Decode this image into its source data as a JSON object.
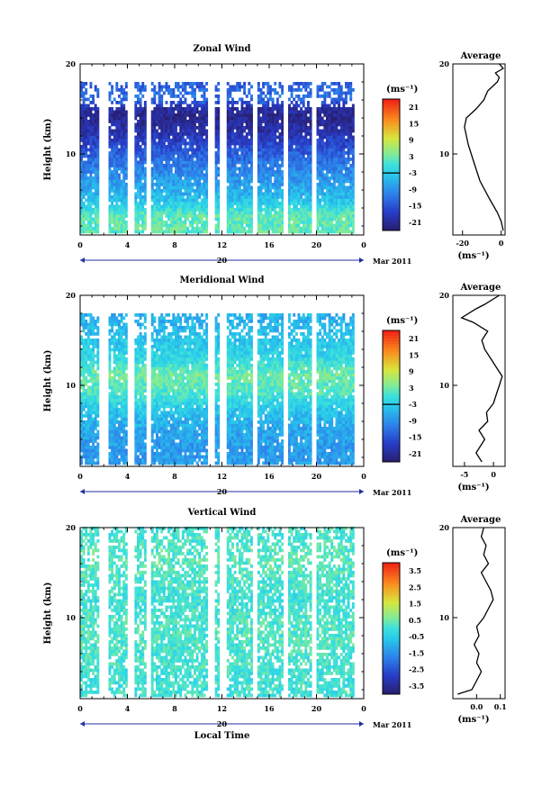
{
  "chart_data": [
    {
      "type": "heatmap",
      "title": "Zonal Wind",
      "xlabel": "",
      "ylabel": "Height (km)",
      "xlim": [
        0,
        24
      ],
      "ylim": [
        1,
        20
      ],
      "x_ticks": [
        "0",
        "4",
        "8",
        "12",
        "16",
        "20",
        "0"
      ],
      "y_ticks": [
        "20",
        "10"
      ],
      "date_label": "20",
      "month_label": "Mar 2011",
      "colorbar": {
        "unit": "(ms⁻¹)",
        "ticks": [
          "21",
          "15",
          "9",
          "3",
          "-3",
          "-9",
          "-15",
          "-21"
        ],
        "range": [
          -24,
          24
        ]
      },
      "value_by_height": [
        {
          "h": 3,
          "v": 2
        },
        {
          "h": 5,
          "v": -5
        },
        {
          "h": 8,
          "v": -10
        },
        {
          "h": 10,
          "v": -14
        },
        {
          "h": 12,
          "v": -19
        },
        {
          "h": 14,
          "v": -22
        },
        {
          "h": 15,
          "v": -20
        },
        {
          "h": 16,
          "v": -12
        },
        {
          "h": 17.5,
          "v": -14
        }
      ],
      "average": {
        "title": "Average",
        "xlabel": "(ms⁻¹)",
        "x_ticks": [
          "-20",
          "0"
        ],
        "y_ticks": [
          "20",
          "10"
        ],
        "xlim": [
          -25,
          2
        ],
        "ylim": [
          1,
          20
        ],
        "profile": [
          {
            "h": 1.5,
            "v": 1
          },
          {
            "h": 2.5,
            "v": 0
          },
          {
            "h": 3.5,
            "v": -2
          },
          {
            "h": 5,
            "v": -6
          },
          {
            "h": 7,
            "v": -11
          },
          {
            "h": 9,
            "v": -14
          },
          {
            "h": 11,
            "v": -17
          },
          {
            "h": 13,
            "v": -19
          },
          {
            "h": 14,
            "v": -18
          },
          {
            "h": 15,
            "v": -13
          },
          {
            "h": 16,
            "v": -9
          },
          {
            "h": 17,
            "v": -7
          },
          {
            "h": 18,
            "v": -2
          },
          {
            "h": 18.5,
            "v": -1
          },
          {
            "h": 19,
            "v": -3
          },
          {
            "h": 19.5,
            "v": 1
          },
          {
            "h": 20,
            "v": -1
          }
        ]
      }
    },
    {
      "type": "heatmap",
      "title": "Meridional Wind",
      "xlabel": "",
      "ylabel": "Height (km)",
      "xlim": [
        0,
        24
      ],
      "ylim": [
        1,
        20
      ],
      "x_ticks": [
        "0",
        "4",
        "8",
        "12",
        "16",
        "20",
        "0"
      ],
      "y_ticks": [
        "20",
        "10"
      ],
      "date_label": "20",
      "month_label": "Mar 2011",
      "colorbar": {
        "unit": "(ms⁻¹)",
        "ticks": [
          "21",
          "15",
          "9",
          "3",
          "-3",
          "-9",
          "-15",
          "-21"
        ],
        "range": [
          -24,
          24
        ]
      },
      "value_by_height": [
        {
          "h": 3,
          "v": -8
        },
        {
          "h": 5,
          "v": -7
        },
        {
          "h": 7,
          "v": -4
        },
        {
          "h": 9,
          "v": 1
        },
        {
          "h": 11,
          "v": 3
        },
        {
          "h": 13,
          "v": -2
        },
        {
          "h": 15,
          "v": -4
        },
        {
          "h": 17,
          "v": -6
        }
      ],
      "average": {
        "title": "Average",
        "xlabel": "(ms⁻¹)",
        "x_ticks": [
          "-5",
          "0"
        ],
        "y_ticks": [
          "20",
          "10"
        ],
        "xlim": [
          -7,
          2
        ],
        "ylim": [
          1,
          20
        ],
        "profile": [
          {
            "h": 1.5,
            "v": -2
          },
          {
            "h": 2.5,
            "v": -3
          },
          {
            "h": 4,
            "v": -1.5
          },
          {
            "h": 5,
            "v": -2.5
          },
          {
            "h": 6,
            "v": -1
          },
          {
            "h": 7,
            "v": -1.2
          },
          {
            "h": 8,
            "v": 0
          },
          {
            "h": 9,
            "v": 0.5
          },
          {
            "h": 10,
            "v": 1
          },
          {
            "h": 11,
            "v": 1.5
          },
          {
            "h": 12,
            "v": 0.5
          },
          {
            "h": 13,
            "v": -0.5
          },
          {
            "h": 14,
            "v": -1.5
          },
          {
            "h": 15,
            "v": -2
          },
          {
            "h": 16,
            "v": -1
          },
          {
            "h": 17,
            "v": -3.5
          },
          {
            "h": 17.5,
            "v": -5.5
          },
          {
            "h": 18.5,
            "v": -3
          },
          {
            "h": 19,
            "v": -1.5
          },
          {
            "h": 20,
            "v": 1
          }
        ]
      }
    },
    {
      "type": "heatmap",
      "title": "Vertical Wind",
      "xlabel": "Local Time",
      "ylabel": "Height (km)",
      "xlim": [
        0,
        24
      ],
      "ylim": [
        1,
        20
      ],
      "x_ticks": [
        "0",
        "4",
        "8",
        "12",
        "16",
        "20",
        "0"
      ],
      "y_ticks": [
        "20",
        "10"
      ],
      "date_label": "20",
      "month_label": "Mar 2011",
      "colorbar": {
        "unit": "(ms⁻¹)",
        "ticks": [
          "3.5",
          "2.5",
          "1.5",
          "0.5",
          "-0.5",
          "-1.5",
          "-2.5",
          "-3.5"
        ],
        "range": [
          -4,
          4
        ]
      },
      "value_by_height": [
        {
          "h": 3,
          "v": 0
        },
        {
          "h": 8,
          "v": 0.2
        },
        {
          "h": 12,
          "v": 0
        },
        {
          "h": 16,
          "v": 0.3
        },
        {
          "h": 19,
          "v": 0.1
        }
      ],
      "average": {
        "title": "Average",
        "xlabel": "(ms⁻¹)",
        "x_ticks": [
          "0.0",
          "0.1"
        ],
        "y_ticks": [
          "20",
          "10"
        ],
        "xlim": [
          -0.1,
          0.12
        ],
        "ylim": [
          1,
          20
        ],
        "profile": [
          {
            "h": 1.5,
            "v": -0.08
          },
          {
            "h": 2,
            "v": -0.02
          },
          {
            "h": 3,
            "v": 0.0
          },
          {
            "h": 4,
            "v": 0.02
          },
          {
            "h": 5,
            "v": 0.0
          },
          {
            "h": 6,
            "v": 0.01
          },
          {
            "h": 7,
            "v": -0.01
          },
          {
            "h": 8,
            "v": 0.01
          },
          {
            "h": 9,
            "v": 0.0
          },
          {
            "h": 10,
            "v": 0.03
          },
          {
            "h": 11,
            "v": 0.05
          },
          {
            "h": 12,
            "v": 0.07
          },
          {
            "h": 13,
            "v": 0.06
          },
          {
            "h": 14,
            "v": 0.04
          },
          {
            "h": 15,
            "v": 0.02
          },
          {
            "h": 16,
            "v": 0.05
          },
          {
            "h": 17,
            "v": 0.03
          },
          {
            "h": 18,
            "v": 0.04
          },
          {
            "h": 19,
            "v": 0.02
          },
          {
            "h": 20,
            "v": 0.03
          }
        ]
      }
    }
  ]
}
